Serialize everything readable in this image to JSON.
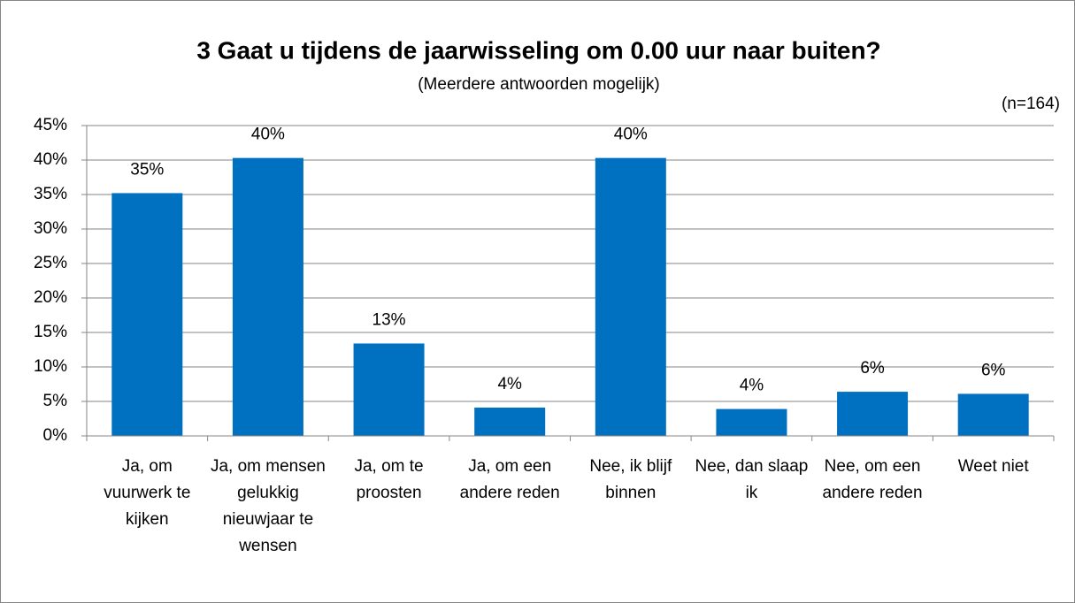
{
  "chart_data": {
    "type": "bar",
    "title": "3 Gaat u tijdens de jaarwisseling om 0.00 uur naar buiten?",
    "subtitle": "(Meerdere antwoorden mogelijk)",
    "annotation": "(n=164)",
    "categories": [
      "Ja, om vuurwerk te kijken",
      "Ja, om mensen gelukkig nieuwjaar te wensen",
      "Ja, om te proosten",
      "Ja, om een andere reden",
      "Nee, ik blijf binnen",
      "Nee, dan slaap ik",
      "Nee, om een andere reden",
      "Weet niet"
    ],
    "values": [
      35.2,
      40.3,
      13.4,
      4.1,
      40.3,
      3.9,
      6.4,
      6.1
    ],
    "value_labels": [
      "35%",
      "40%",
      "13%",
      "4%",
      "40%",
      "4%",
      "6%",
      "6%"
    ],
    "color": "#0070c0",
    "ylim": [
      0,
      45
    ],
    "yticks": [
      {
        "value": 0,
        "label": "0%"
      },
      {
        "value": 5,
        "label": "5%"
      },
      {
        "value": 10,
        "label": "10%"
      },
      {
        "value": 15,
        "label": "15%"
      },
      {
        "value": 20,
        "label": "20%"
      },
      {
        "value": 25,
        "label": "25%"
      },
      {
        "value": 30,
        "label": "30%"
      },
      {
        "value": 35,
        "label": "35%"
      },
      {
        "value": 40,
        "label": "40%"
      },
      {
        "value": 45,
        "label": "45%"
      }
    ],
    "grid": true
  }
}
